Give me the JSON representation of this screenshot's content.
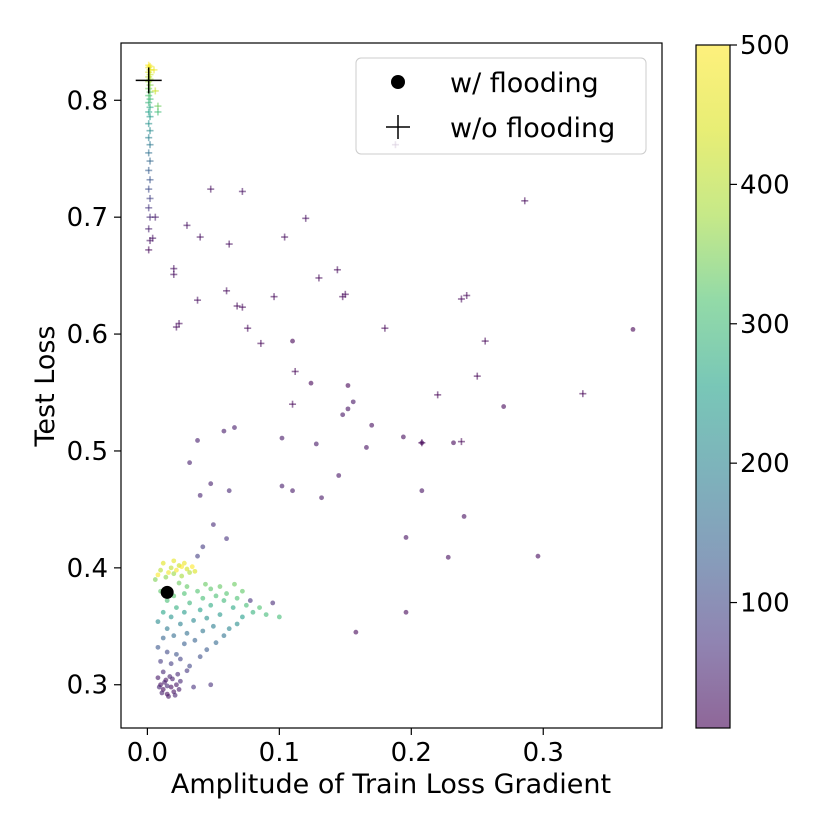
{
  "chart_data": {
    "type": "scatter",
    "title": "",
    "xlabel": "Amplitude of Train Loss Gradient",
    "ylabel": "Test Loss",
    "xlim": [
      -0.02,
      0.39
    ],
    "ylim": [
      0.263,
      0.849
    ],
    "xticks": [
      0.0,
      0.1,
      0.2,
      0.3
    ],
    "xtick_labels": [
      "0.0",
      "0.1",
      "0.2",
      "0.3"
    ],
    "yticks": [
      0.3,
      0.4,
      0.5,
      0.6,
      0.7,
      0.8
    ],
    "ytick_labels": [
      "0.3",
      "0.4",
      "0.5",
      "0.6",
      "0.7",
      "0.8"
    ],
    "grid": false,
    "legend_position": "top-right",
    "colormap": "viridis",
    "colorbar": {
      "range": [
        10,
        500
      ],
      "ticks": [
        100,
        200,
        300,
        400,
        500
      ],
      "tick_labels": [
        "100",
        "200",
        "300",
        "400",
        "500"
      ]
    },
    "legend": [
      {
        "label": "w/ flooding",
        "marker": "dot"
      },
      {
        "label": "w/o flooding",
        "marker": "plus"
      }
    ],
    "series": [
      {
        "name": "w/ flooding",
        "marker": "dot",
        "points": [
          [
            0.012,
            0.296,
            20
          ],
          [
            0.015,
            0.292,
            22
          ],
          [
            0.018,
            0.298,
            24
          ],
          [
            0.01,
            0.3,
            26
          ],
          [
            0.02,
            0.294,
            28
          ],
          [
            0.014,
            0.304,
            30
          ],
          [
            0.022,
            0.3,
            32
          ],
          [
            0.016,
            0.29,
            34
          ],
          [
            0.008,
            0.306,
            36
          ],
          [
            0.024,
            0.296,
            38
          ],
          [
            0.013,
            0.302,
            40
          ],
          [
            0.019,
            0.305,
            42
          ],
          [
            0.011,
            0.293,
            44
          ],
          [
            0.021,
            0.291,
            46
          ],
          [
            0.017,
            0.307,
            48
          ],
          [
            0.009,
            0.298,
            50
          ],
          [
            0.025,
            0.303,
            52
          ],
          [
            0.015,
            0.299,
            54
          ],
          [
            0.023,
            0.309,
            56
          ],
          [
            0.012,
            0.311,
            58
          ],
          [
            0.035,
            0.298,
            70
          ],
          [
            0.048,
            0.3,
            66
          ],
          [
            0.03,
            0.312,
            75
          ],
          [
            0.01,
            0.32,
            80
          ],
          [
            0.018,
            0.318,
            86
          ],
          [
            0.025,
            0.322,
            92
          ],
          [
            0.032,
            0.316,
            98
          ],
          [
            0.015,
            0.328,
            104
          ],
          [
            0.04,
            0.324,
            110
          ],
          [
            0.022,
            0.326,
            116
          ],
          [
            0.008,
            0.332,
            122
          ],
          [
            0.045,
            0.33,
            128
          ],
          [
            0.028,
            0.335,
            134
          ],
          [
            0.036,
            0.338,
            140
          ],
          [
            0.012,
            0.34,
            146
          ],
          [
            0.052,
            0.336,
            152
          ],
          [
            0.02,
            0.342,
            158
          ],
          [
            0.03,
            0.344,
            164
          ],
          [
            0.058,
            0.342,
            170
          ],
          [
            0.042,
            0.346,
            176
          ],
          [
            0.015,
            0.348,
            182
          ],
          [
            0.05,
            0.35,
            188
          ],
          [
            0.025,
            0.352,
            194
          ],
          [
            0.062,
            0.348,
            200
          ],
          [
            0.035,
            0.355,
            206
          ],
          [
            0.008,
            0.354,
            212
          ],
          [
            0.068,
            0.352,
            218
          ],
          [
            0.045,
            0.357,
            224
          ],
          [
            0.018,
            0.358,
            230
          ],
          [
            0.055,
            0.36,
            236
          ],
          [
            0.028,
            0.362,
            242
          ],
          [
            0.072,
            0.358,
            248
          ],
          [
            0.04,
            0.364,
            254
          ],
          [
            0.012,
            0.362,
            260
          ],
          [
            0.065,
            0.366,
            266
          ],
          [
            0.048,
            0.368,
            272
          ],
          [
            0.022,
            0.366,
            278
          ],
          [
            0.08,
            0.362,
            284
          ],
          [
            0.032,
            0.37,
            290
          ],
          [
            0.058,
            0.372,
            296
          ],
          [
            0.09,
            0.36,
            300
          ],
          [
            0.1,
            0.358,
            302
          ],
          [
            0.075,
            0.368,
            304
          ],
          [
            0.042,
            0.374,
            306
          ],
          [
            0.015,
            0.372,
            308
          ],
          [
            0.052,
            0.376,
            310
          ],
          [
            0.068,
            0.374,
            312
          ],
          [
            0.028,
            0.378,
            314
          ],
          [
            0.085,
            0.366,
            316
          ],
          [
            0.038,
            0.38,
            318
          ],
          [
            0.06,
            0.378,
            320
          ],
          [
            0.02,
            0.376,
            322
          ],
          [
            0.048,
            0.382,
            324
          ],
          [
            0.01,
            0.38,
            326
          ],
          [
            0.072,
            0.38,
            328
          ],
          [
            0.03,
            0.384,
            330
          ],
          [
            0.055,
            0.384,
            332
          ],
          [
            0.044,
            0.386,
            334
          ],
          [
            0.066,
            0.386,
            336
          ],
          [
            0.024,
            0.387,
            338
          ],
          [
            0.006,
            0.39,
            350
          ],
          [
            0.014,
            0.392,
            360
          ],
          [
            0.02,
            0.395,
            370
          ],
          [
            0.026,
            0.393,
            380
          ],
          [
            0.032,
            0.396,
            390
          ],
          [
            0.01,
            0.398,
            400
          ],
          [
            0.018,
            0.4,
            410
          ],
          [
            0.024,
            0.402,
            420
          ],
          [
            0.03,
            0.399,
            430
          ],
          [
            0.036,
            0.397,
            440
          ],
          [
            0.012,
            0.404,
            450
          ],
          [
            0.02,
            0.406,
            460
          ],
          [
            0.028,
            0.404,
            470
          ],
          [
            0.016,
            0.396,
            480
          ],
          [
            0.022,
            0.398,
            490
          ],
          [
            0.008,
            0.394,
            495
          ],
          [
            0.026,
            0.401,
            498
          ],
          [
            0.034,
            0.401,
            500
          ],
          [
            0.095,
            0.37,
            60
          ],
          [
            0.078,
            0.372,
            70
          ],
          [
            0.038,
            0.41,
            88
          ],
          [
            0.042,
            0.418,
            82
          ],
          [
            0.06,
            0.425,
            70
          ],
          [
            0.05,
            0.437,
            60
          ],
          [
            0.062,
            0.466,
            52
          ],
          [
            0.04,
            0.462,
            48
          ],
          [
            0.048,
            0.472,
            44
          ],
          [
            0.102,
            0.47,
            40
          ],
          [
            0.11,
            0.466,
            36
          ],
          [
            0.132,
            0.46,
            34
          ],
          [
            0.145,
            0.479,
            30
          ],
          [
            0.208,
            0.466,
            28
          ],
          [
            0.196,
            0.426,
            26
          ],
          [
            0.24,
            0.444,
            24
          ],
          [
            0.228,
            0.409,
            22
          ],
          [
            0.296,
            0.41,
            20
          ],
          [
            0.196,
            0.362,
            18
          ],
          [
            0.158,
            0.345,
            16
          ],
          [
            0.032,
            0.49,
            44
          ],
          [
            0.038,
            0.509,
            42
          ],
          [
            0.066,
            0.52,
            40
          ],
          [
            0.058,
            0.517,
            38
          ],
          [
            0.102,
            0.511,
            36
          ],
          [
            0.128,
            0.506,
            34
          ],
          [
            0.148,
            0.531,
            32
          ],
          [
            0.156,
            0.542,
            30
          ],
          [
            0.152,
            0.536,
            28
          ],
          [
            0.166,
            0.503,
            26
          ],
          [
            0.17,
            0.522,
            24
          ],
          [
            0.194,
            0.512,
            22
          ],
          [
            0.208,
            0.507,
            20
          ],
          [
            0.232,
            0.507,
            18
          ],
          [
            0.27,
            0.538,
            16
          ],
          [
            0.124,
            0.558,
            14
          ],
          [
            0.152,
            0.556,
            12
          ],
          [
            0.11,
            0.594,
            12
          ],
          [
            0.368,
            0.604,
            10
          ]
        ]
      },
      {
        "name": "w/o flooding",
        "marker": "plus",
        "points": [
          [
            0.001,
            0.672,
            15
          ],
          [
            0.002,
            0.68,
            30
          ],
          [
            0.001,
            0.69,
            45
          ],
          [
            0.002,
            0.7,
            60
          ],
          [
            0.001,
            0.708,
            75
          ],
          [
            0.002,
            0.716,
            90
          ],
          [
            0.001,
            0.724,
            105
          ],
          [
            0.002,
            0.732,
            120
          ],
          [
            0.001,
            0.74,
            135
          ],
          [
            0.002,
            0.748,
            150
          ],
          [
            0.001,
            0.755,
            165
          ],
          [
            0.002,
            0.762,
            180
          ],
          [
            0.001,
            0.768,
            195
          ],
          [
            0.002,
            0.774,
            210
          ],
          [
            0.001,
            0.78,
            225
          ],
          [
            0.002,
            0.786,
            240
          ],
          [
            0.001,
            0.79,
            255
          ],
          [
            0.002,
            0.794,
            270
          ],
          [
            0.001,
            0.798,
            285
          ],
          [
            0.002,
            0.801,
            300
          ],
          [
            0.001,
            0.804,
            315
          ],
          [
            0.002,
            0.807,
            330
          ],
          [
            0.001,
            0.81,
            345
          ],
          [
            0.002,
            0.813,
            360
          ],
          [
            0.001,
            0.816,
            375
          ],
          [
            0.002,
            0.818,
            390
          ],
          [
            0.001,
            0.82,
            405
          ],
          [
            0.002,
            0.822,
            420
          ],
          [
            0.001,
            0.824,
            435
          ],
          [
            0.002,
            0.826,
            450
          ],
          [
            0.001,
            0.828,
            465
          ],
          [
            0.002,
            0.829,
            480
          ],
          [
            0.001,
            0.83,
            495
          ],
          [
            0.006,
            0.7,
            40
          ],
          [
            0.004,
            0.682,
            30
          ],
          [
            0.008,
            0.79,
            300
          ],
          [
            0.008,
            0.795,
            340
          ],
          [
            0.006,
            0.808,
            420
          ],
          [
            0.005,
            0.826,
            470
          ],
          [
            0.02,
            0.651,
            20
          ],
          [
            0.02,
            0.656,
            22
          ],
          [
            0.022,
            0.606,
            18
          ],
          [
            0.024,
            0.609,
            16
          ],
          [
            0.03,
            0.693,
            24
          ],
          [
            0.04,
            0.683,
            22
          ],
          [
            0.038,
            0.629,
            20
          ],
          [
            0.048,
            0.724,
            26
          ],
          [
            0.06,
            0.637,
            18
          ],
          [
            0.062,
            0.677,
            20
          ],
          [
            0.068,
            0.624,
            16
          ],
          [
            0.072,
            0.722,
            24
          ],
          [
            0.072,
            0.623,
            14
          ],
          [
            0.076,
            0.605,
            14
          ],
          [
            0.086,
            0.592,
            12
          ],
          [
            0.096,
            0.632,
            16
          ],
          [
            0.104,
            0.683,
            20
          ],
          [
            0.12,
            0.699,
            22
          ],
          [
            0.11,
            0.54,
            12
          ],
          [
            0.112,
            0.568,
            12
          ],
          [
            0.13,
            0.648,
            16
          ],
          [
            0.144,
            0.655,
            16
          ],
          [
            0.148,
            0.632,
            14
          ],
          [
            0.15,
            0.634,
            14
          ],
          [
            0.18,
            0.605,
            12
          ],
          [
            0.188,
            0.762,
            30
          ],
          [
            0.22,
            0.548,
            10
          ],
          [
            0.238,
            0.63,
            14
          ],
          [
            0.242,
            0.633,
            12
          ],
          [
            0.25,
            0.564,
            10
          ],
          [
            0.256,
            0.594,
            12
          ],
          [
            0.286,
            0.714,
            18
          ],
          [
            0.33,
            0.549,
            10
          ],
          [
            0.238,
            0.508,
            10
          ],
          [
            0.208,
            0.507,
            10
          ]
        ]
      }
    ],
    "highlight_points": [
      {
        "series": "w/ flooding",
        "x": 0.015,
        "y": 0.379
      },
      {
        "series": "w/o flooding",
        "x": 0.001,
        "y": 0.817
      }
    ]
  }
}
